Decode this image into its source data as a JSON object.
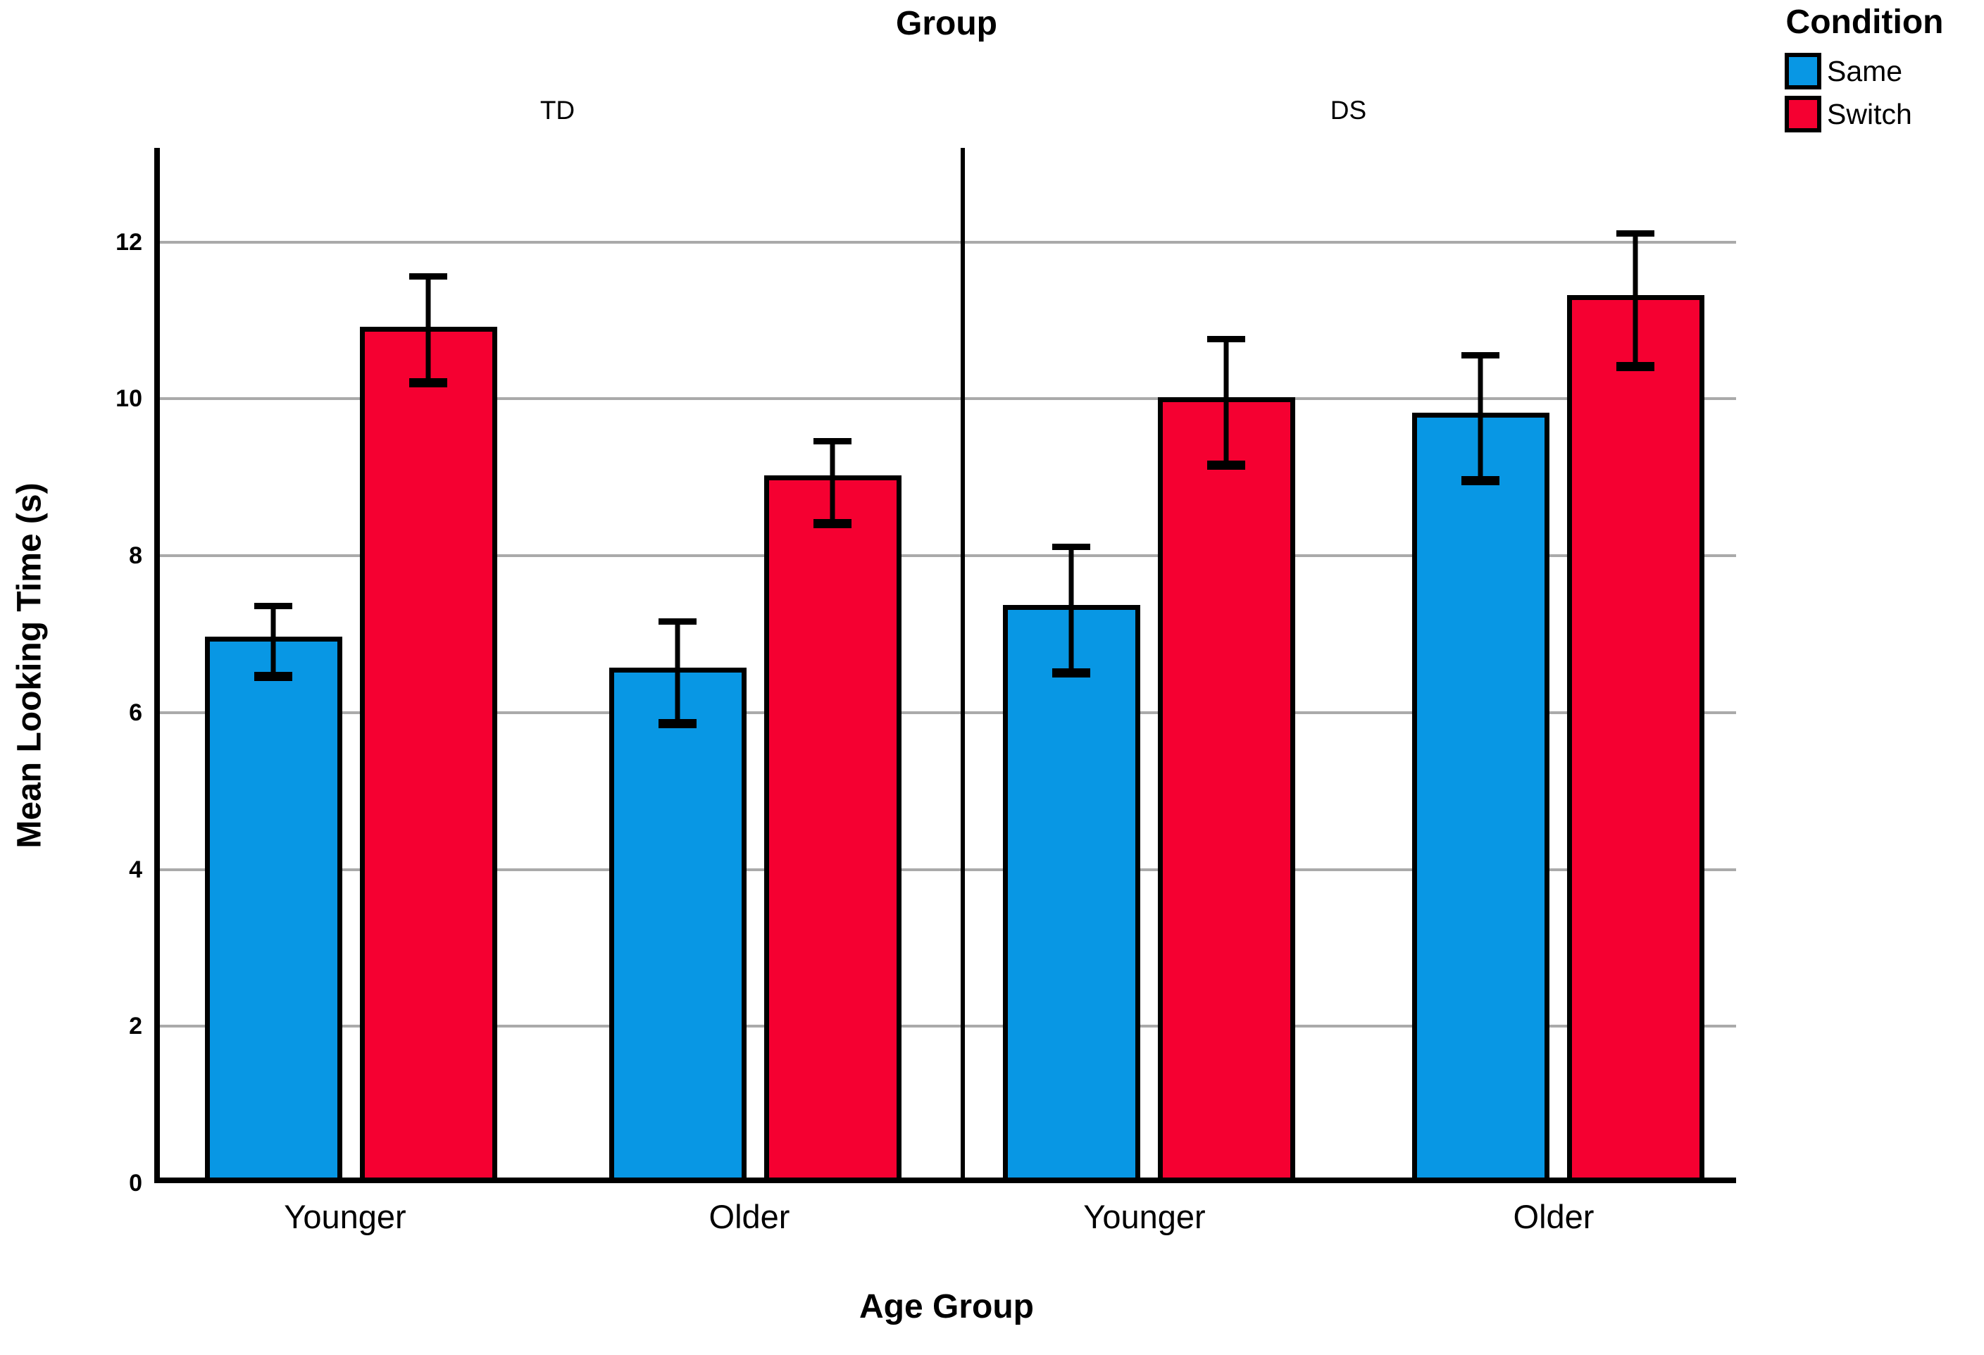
{
  "title": "Group",
  "x_axis_label": "Age Group",
  "y_axis_label": "Mean Looking Time (s)",
  "legend": {
    "title": "Condition",
    "items": [
      {
        "label": "Same",
        "color": "#0897E4"
      },
      {
        "label": "Switch",
        "color": "#F50031"
      }
    ]
  },
  "colors": {
    "same_blue": "#0897E4",
    "switch_red": "#F50031",
    "gridline_gray": "#AAAAAA",
    "axis_black": "#000000"
  },
  "chart_data": {
    "type": "bar",
    "layout": "two panels side by side (facet columns), grouped bars with error bars",
    "title": "Group",
    "xlabel": "Age Group",
    "ylabel": "Mean Looking Time (s)",
    "ylim": [
      0,
      13.2
    ],
    "yticks": [
      0,
      2,
      4,
      6,
      8,
      10,
      12
    ],
    "grid": "horizontal light-gray lines at y ticks 2-12",
    "legend_position": "top-right",
    "legend_title": "Condition",
    "panels": [
      {
        "label": "TD",
        "categories": [
          "Younger",
          "Older"
        ],
        "series": [
          {
            "name": "Same",
            "color": "#0897E4",
            "values": [
              6.9,
              6.5
            ],
            "ci_low": [
              6.4,
              5.8
            ],
            "ci_high": [
              7.4,
              7.2
            ]
          },
          {
            "name": "Switch",
            "color": "#F50031",
            "values": [
              10.85,
              8.95
            ],
            "ci_low": [
              10.15,
              8.35
            ],
            "ci_high": [
              11.6,
              9.5
            ]
          }
        ]
      },
      {
        "label": "DS",
        "categories": [
          "Younger",
          "Older"
        ],
        "series": [
          {
            "name": "Same",
            "color": "#0897E4",
            "values": [
              7.3,
              9.75
            ],
            "ci_low": [
              6.45,
              8.9
            ],
            "ci_high": [
              8.15,
              10.6
            ]
          },
          {
            "name": "Switch",
            "color": "#F50031",
            "values": [
              9.95,
              11.25
            ],
            "ci_low": [
              9.1,
              10.35
            ],
            "ci_high": [
              10.8,
              12.15
            ]
          }
        ]
      }
    ]
  }
}
